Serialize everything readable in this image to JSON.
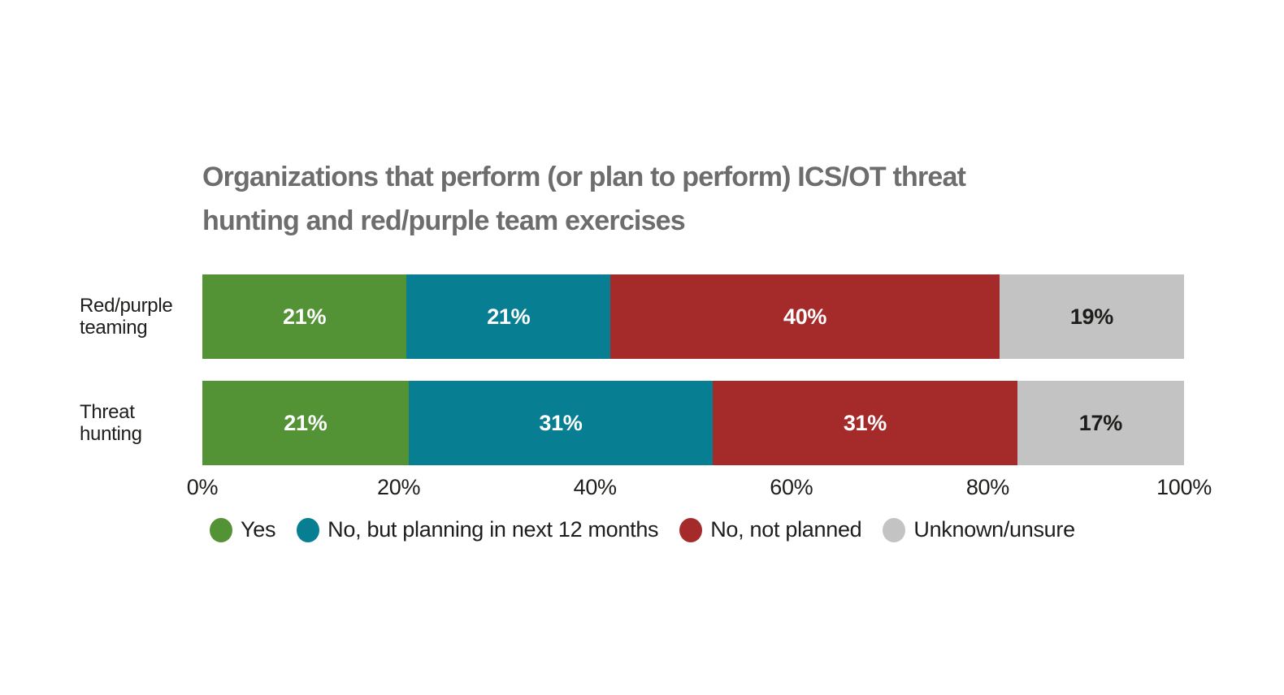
{
  "page": {
    "background_color": "#ffffff",
    "text_color": "#1d1d1b"
  },
  "chart_data": {
    "type": "bar",
    "orientation": "horizontal",
    "stacked": true,
    "title": "Organizations that perform (or plan to perform) ICS/OT threat\nhunting and red/purple team exercises",
    "title_color": "#6d6d6d",
    "categories": [
      "Red/purple teaming",
      "Threat hunting"
    ],
    "series": [
      {
        "name": "Yes",
        "color": "#539235",
        "label_color": "#ffffff",
        "values": [
          21,
          21
        ]
      },
      {
        "name": "No, but planning in next 12 months",
        "color": "#077e91",
        "label_color": "#ffffff",
        "values": [
          21,
          31
        ]
      },
      {
        "name": "No, not planned",
        "color": "#a52b2b",
        "label_color": "#ffffff",
        "values": [
          40,
          31
        ]
      },
      {
        "name": "Unknown/unsure",
        "color": "#c3c3c3",
        "label_color": "#1d1d1b",
        "values": [
          19,
          17
        ]
      }
    ],
    "value_suffix": "%",
    "x_ticks": [
      "0%",
      "20%",
      "40%",
      "60%",
      "80%",
      "100%"
    ],
    "xlim": [
      0,
      100
    ],
    "grid": false,
    "legend_position": "bottom",
    "legend_marker": "circle"
  }
}
